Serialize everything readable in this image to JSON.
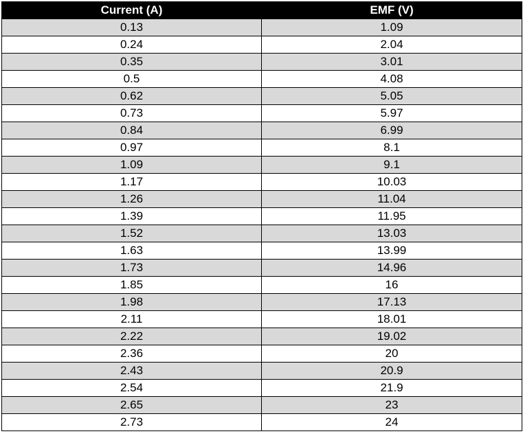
{
  "table": {
    "headers": [
      "Current (A)",
      "EMF (V)"
    ],
    "rows": [
      [
        "0.13",
        "1.09"
      ],
      [
        "0.24",
        "2.04"
      ],
      [
        "0.35",
        "3.01"
      ],
      [
        "0.5",
        "4.08"
      ],
      [
        "0.62",
        "5.05"
      ],
      [
        "0.73",
        "5.97"
      ],
      [
        "0.84",
        "6.99"
      ],
      [
        "0.97",
        "8.1"
      ],
      [
        "1.09",
        "9.1"
      ],
      [
        "1.17",
        "10.03"
      ],
      [
        "1.26",
        "11.04"
      ],
      [
        "1.39",
        "11.95"
      ],
      [
        "1.52",
        "13.03"
      ],
      [
        "1.63",
        "13.99"
      ],
      [
        "1.73",
        "14.96"
      ],
      [
        "1.85",
        "16"
      ],
      [
        "1.98",
        "17.13"
      ],
      [
        "2.11",
        "18.01"
      ],
      [
        "2.22",
        "19.02"
      ],
      [
        "2.36",
        "20"
      ],
      [
        "2.43",
        "20.9"
      ],
      [
        "2.54",
        "21.9"
      ],
      [
        "2.65",
        "23"
      ],
      [
        "2.73",
        "24"
      ]
    ]
  },
  "colors": {
    "header_background": "#000000",
    "header_text": "#ffffff",
    "shaded_row": "#d9d9d9",
    "plain_row": "#ffffff",
    "border": "#000000"
  }
}
